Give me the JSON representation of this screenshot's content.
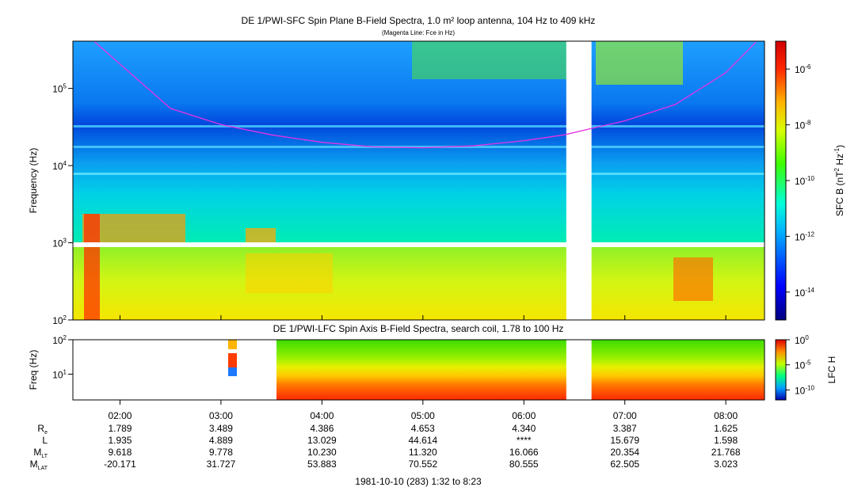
{
  "chart_data": [
    {
      "type": "heatmap",
      "title": "DE 1/PWI-SFC  Spin Plane B-Field Spectra, 1.0 m² loop antenna, 104 Hz to 409 kHz",
      "subtitle": "(Magenta Line: Fce in Hz)",
      "ylabel": "Frequency (Hz)",
      "yscale": "log",
      "ylim": [
        100,
        409000
      ],
      "y_ticks": [
        {
          "value": 100,
          "label": "10",
          "exp": "2"
        },
        {
          "value": 1000,
          "label": "10",
          "exp": "3"
        },
        {
          "value": 10000,
          "label": "10",
          "exp": "4"
        },
        {
          "value": 100000,
          "label": "10",
          "exp": "5"
        }
      ],
      "colorbar": {
        "label": "SFC B (nT",
        "label_sup1": "2",
        "label_mid": " Hz",
        "label_sup2": "-1",
        "label_end": ")",
        "scale": "log",
        "range": [
          1e-15,
          1e-05
        ],
        "ticks": [
          {
            "value": 1e-06,
            "label": "10",
            "exp": "-6"
          },
          {
            "value": 1e-08,
            "label": "10",
            "exp": "-8"
          },
          {
            "value": 1e-10,
            "label": "10",
            "exp": "-10"
          },
          {
            "value": 1e-12,
            "label": "10",
            "exp": "-12"
          },
          {
            "value": 1e-14,
            "label": "10",
            "exp": "-14"
          }
        ]
      },
      "data_gap_hours": [
        6.42,
        6.67
      ],
      "magenta_line_fce": [
        {
          "time": 1.75,
          "freq": 400000
        },
        {
          "time": 2.5,
          "freq": 55000
        },
        {
          "time": 3.0,
          "freq": 34000
        },
        {
          "time": 3.5,
          "freq": 25000
        },
        {
          "time": 4.0,
          "freq": 20000
        },
        {
          "time": 4.5,
          "freq": 17500
        },
        {
          "time": 5.0,
          "freq": 17000
        },
        {
          "time": 5.5,
          "freq": 18000
        },
        {
          "time": 6.0,
          "freq": 21000
        },
        {
          "time": 6.4,
          "freq": 25000
        },
        {
          "time": 6.7,
          "freq": 31000
        },
        {
          "time": 7.0,
          "freq": 38000
        },
        {
          "time": 7.5,
          "freq": 62000
        },
        {
          "time": 8.0,
          "freq": 160000
        },
        {
          "time": 8.3,
          "freq": 400000
        }
      ]
    },
    {
      "type": "heatmap",
      "title": "DE 1/PWI-LFC  Spin Axis B-Field Spectra, search coil, 1.78 to 100 Hz",
      "ylabel": "Freq (Hz)",
      "yscale": "log",
      "ylim": [
        1.78,
        100
      ],
      "y_ticks": [
        {
          "value": 10,
          "label": "10",
          "exp": "1"
        },
        {
          "value": 100,
          "label": "10",
          "exp": "2"
        }
      ],
      "colorbar": {
        "label": "LFC H",
        "scale": "log",
        "range": [
          1e-12,
          1
        ],
        "ticks": [
          {
            "value": 1,
            "label": "10",
            "exp": "0"
          },
          {
            "value": 1e-05,
            "label": "10",
            "exp": "-5"
          },
          {
            "value": 1e-10,
            "label": "10",
            "exp": "-10"
          }
        ]
      },
      "data_start_hours": 3.55,
      "data_gap_hours": [
        6.42,
        6.67
      ]
    }
  ],
  "x_axis": {
    "range_hours": [
      1.5333,
      8.3833
    ],
    "ticks": [
      {
        "value": 2,
        "label": "02:00"
      },
      {
        "value": 3,
        "label": "03:00"
      },
      {
        "value": 4,
        "label": "04:00"
      },
      {
        "value": 5,
        "label": "05:00"
      },
      {
        "value": 6,
        "label": "06:00"
      },
      {
        "value": 7,
        "label": "07:00"
      },
      {
        "value": 8,
        "label": "08:00"
      }
    ]
  },
  "orbit_table": {
    "rows": [
      {
        "label": "R",
        "sub": "e",
        "values": [
          "1.789",
          "3.489",
          "4.386",
          "4.653",
          "4.340",
          "3.387",
          "1.625"
        ]
      },
      {
        "label": "L",
        "sub": "",
        "values": [
          "1.935",
          "4.889",
          "13.029",
          "44.614",
          "****",
          "15.679",
          "1.598"
        ]
      },
      {
        "label": "M",
        "sub": "LT",
        "values": [
          "9.618",
          "9.778",
          "10.230",
          "11.320",
          "16.066",
          "20.354",
          "21.768"
        ]
      },
      {
        "label": "M",
        "sub": "LAT",
        "values": [
          "-20.171",
          "31.727",
          "53.883",
          "70.552",
          "80.555",
          "62.505",
          "3.023"
        ]
      }
    ]
  },
  "footer": "1981-10-10 (283) 1:32 to 8:23"
}
